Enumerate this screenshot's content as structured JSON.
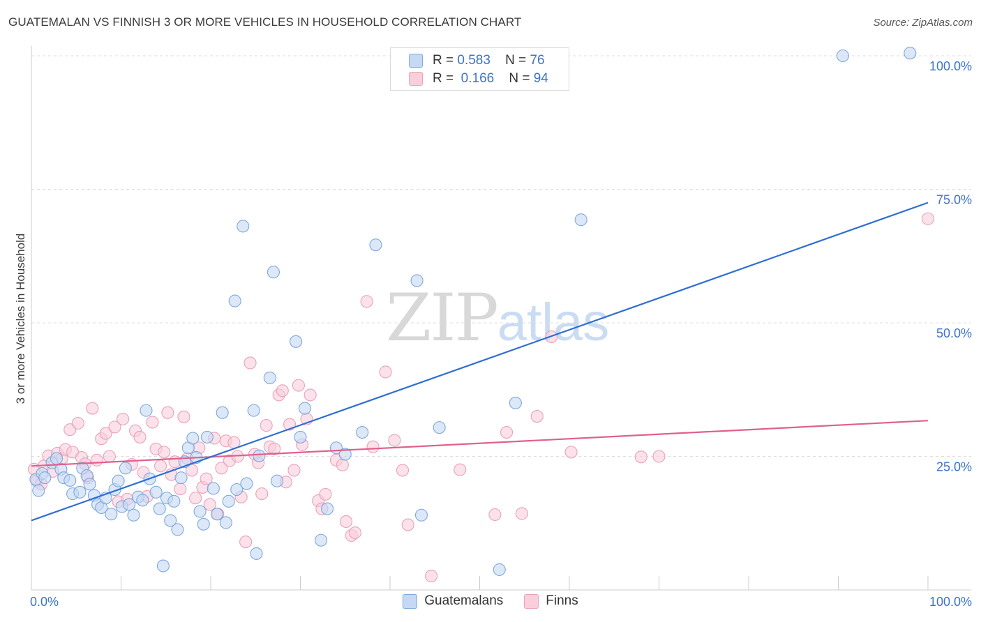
{
  "header": {
    "title": "GUATEMALAN VS FINNISH 3 OR MORE VEHICLES IN HOUSEHOLD CORRELATION CHART",
    "source": "Source: ZipAtlas.com"
  },
  "watermark": {
    "zip": "ZIP",
    "atlas": "atlas"
  },
  "stats": {
    "guatemalans": {
      "r_label": "R =",
      "r_value": "0.583",
      "n_label": "N =",
      "n_value": "76"
    },
    "finns": {
      "r_label": "R =",
      "r_value": "0.166",
      "n_label": "N =",
      "n_value": "94"
    }
  },
  "legend": {
    "guatemalans": "Guatemalans",
    "finns": "Finns"
  },
  "colors": {
    "blue_fill": "#c5d9f4",
    "blue_stroke": "#7ea7dd",
    "blue_line": "#2f6fd1",
    "pink_fill": "#f9cfdc",
    "pink_stroke": "#eba0b8",
    "pink_line": "#e0608e",
    "tick_label": "#3b73c9",
    "grid": "#dddddd"
  },
  "chart_data": {
    "type": "scatter",
    "title": "GUATEMALAN VS FINNISH 3 OR MORE VEHICLES IN HOUSEHOLD CORRELATION CHART",
    "xlabel": "",
    "ylabel": "3 or more Vehicles in Household",
    "xlim": [
      0,
      100
    ],
    "ylim": [
      0,
      100
    ],
    "x_tick_labels": [
      "0.0%",
      "100.0%"
    ],
    "y_ticks": [
      25,
      50,
      75,
      100
    ],
    "y_tick_labels": [
      "25.0%",
      "50.0%",
      "75.0%",
      "100.0%"
    ],
    "grid": true,
    "series": [
      {
        "name": "Guatemalans",
        "r": 0.583,
        "n": 76,
        "trend": {
          "x": [
            0,
            100
          ],
          "y": [
            13.0,
            72.5
          ]
        },
        "points": [
          [
            0.5,
            20.7
          ],
          [
            0.8,
            18.6
          ],
          [
            1.2,
            21.8
          ],
          [
            1.5,
            21.0
          ],
          [
            2.3,
            23.8
          ],
          [
            2.8,
            24.6
          ],
          [
            3.3,
            22.6
          ],
          [
            3.6,
            21.0
          ],
          [
            4.3,
            20.5
          ],
          [
            4.6,
            18.0
          ],
          [
            5.4,
            18.3
          ],
          [
            5.7,
            22.8
          ],
          [
            6.2,
            21.4
          ],
          [
            6.5,
            19.8
          ],
          [
            7.0,
            17.7
          ],
          [
            7.4,
            16.0
          ],
          [
            7.8,
            15.4
          ],
          [
            8.3,
            17.2
          ],
          [
            8.9,
            14.2
          ],
          [
            9.3,
            18.8
          ],
          [
            9.7,
            20.4
          ],
          [
            10.1,
            15.6
          ],
          [
            10.5,
            22.8
          ],
          [
            10.9,
            16.0
          ],
          [
            11.4,
            14.0
          ],
          [
            11.9,
            17.4
          ],
          [
            12.4,
            16.8
          ],
          [
            12.8,
            33.6
          ],
          [
            13.2,
            20.8
          ],
          [
            13.9,
            18.3
          ],
          [
            14.3,
            15.2
          ],
          [
            14.7,
            4.5
          ],
          [
            15.1,
            17.2
          ],
          [
            15.5,
            13.0
          ],
          [
            15.9,
            16.6
          ],
          [
            16.3,
            11.3
          ],
          [
            16.7,
            21.0
          ],
          [
            17.1,
            24.0
          ],
          [
            17.5,
            26.6
          ],
          [
            18.0,
            28.4
          ],
          [
            18.4,
            24.8
          ],
          [
            18.8,
            14.7
          ],
          [
            19.2,
            12.3
          ],
          [
            19.6,
            28.6
          ],
          [
            20.3,
            19.0
          ],
          [
            20.7,
            14.2
          ],
          [
            21.3,
            33.2
          ],
          [
            21.7,
            12.6
          ],
          [
            22.0,
            16.6
          ],
          [
            22.7,
            54.1
          ],
          [
            22.9,
            18.8
          ],
          [
            23.6,
            68.1
          ],
          [
            24.0,
            19.9
          ],
          [
            24.8,
            33.6
          ],
          [
            25.1,
            6.8
          ],
          [
            25.4,
            25.1
          ],
          [
            26.6,
            39.7
          ],
          [
            27.0,
            59.5
          ],
          [
            27.4,
            20.4
          ],
          [
            29.5,
            46.5
          ],
          [
            30.0,
            28.6
          ],
          [
            30.5,
            34.0
          ],
          [
            32.3,
            9.3
          ],
          [
            33.0,
            15.2
          ],
          [
            34.0,
            26.6
          ],
          [
            35.0,
            25.4
          ],
          [
            36.9,
            29.5
          ],
          [
            38.4,
            64.6
          ],
          [
            43.0,
            57.9
          ],
          [
            43.5,
            14.0
          ],
          [
            45.5,
            30.4
          ],
          [
            52.2,
            3.8
          ],
          [
            54.0,
            35.0
          ],
          [
            61.3,
            69.3
          ],
          [
            90.5,
            100.0
          ],
          [
            98.0,
            100.5
          ]
        ]
      },
      {
        "name": "Finns",
        "r": 0.166,
        "n": 94,
        "trend": {
          "x": [
            0,
            100
          ],
          "y": [
            23.2,
            31.7
          ]
        },
        "points": [
          [
            0.3,
            22.6
          ],
          [
            0.6,
            20.4
          ],
          [
            1.1,
            19.8
          ],
          [
            1.4,
            23.2
          ],
          [
            1.9,
            25.1
          ],
          [
            2.4,
            22.2
          ],
          [
            2.9,
            25.6
          ],
          [
            3.4,
            24.6
          ],
          [
            3.8,
            26.3
          ],
          [
            4.3,
            30.0
          ],
          [
            4.6,
            25.8
          ],
          [
            5.2,
            31.2
          ],
          [
            5.6,
            24.8
          ],
          [
            6.0,
            23.6
          ],
          [
            6.3,
            21.0
          ],
          [
            6.8,
            34.0
          ],
          [
            7.3,
            24.3
          ],
          [
            7.8,
            28.3
          ],
          [
            8.3,
            29.3
          ],
          [
            8.7,
            25.0
          ],
          [
            9.3,
            30.5
          ],
          [
            9.7,
            16.5
          ],
          [
            10.2,
            32.0
          ],
          [
            10.7,
            17.0
          ],
          [
            11.2,
            23.5
          ],
          [
            11.6,
            29.8
          ],
          [
            12.1,
            28.6
          ],
          [
            12.5,
            22.0
          ],
          [
            12.9,
            17.5
          ],
          [
            13.5,
            31.4
          ],
          [
            13.9,
            26.4
          ],
          [
            14.4,
            23.2
          ],
          [
            14.8,
            25.8
          ],
          [
            15.2,
            33.2
          ],
          [
            15.6,
            21.6
          ],
          [
            16.0,
            24.0
          ],
          [
            16.6,
            18.9
          ],
          [
            17.0,
            32.4
          ],
          [
            17.4,
            24.6
          ],
          [
            17.9,
            22.4
          ],
          [
            18.3,
            17.2
          ],
          [
            18.7,
            26.6
          ],
          [
            19.1,
            19.2
          ],
          [
            19.5,
            20.8
          ],
          [
            19.9,
            16.0
          ],
          [
            20.4,
            28.4
          ],
          [
            20.8,
            14.2
          ],
          [
            21.2,
            22.8
          ],
          [
            21.7,
            27.9
          ],
          [
            22.1,
            24.2
          ],
          [
            22.6,
            27.6
          ],
          [
            23.0,
            25.0
          ],
          [
            23.4,
            17.4
          ],
          [
            23.9,
            9.0
          ],
          [
            24.4,
            42.5
          ],
          [
            24.9,
            25.4
          ],
          [
            25.3,
            23.8
          ],
          [
            25.7,
            18.0
          ],
          [
            26.2,
            30.8
          ],
          [
            26.6,
            26.8
          ],
          [
            27.1,
            26.4
          ],
          [
            27.6,
            36.5
          ],
          [
            28.0,
            37.3
          ],
          [
            28.4,
            20.2
          ],
          [
            28.8,
            31.0
          ],
          [
            29.3,
            22.4
          ],
          [
            29.8,
            38.3
          ],
          [
            30.2,
            27.2
          ],
          [
            30.7,
            32.0
          ],
          [
            31.1,
            36.5
          ],
          [
            32.0,
            16.7
          ],
          [
            32.4,
            15.2
          ],
          [
            32.8,
            17.9
          ],
          [
            34.0,
            24.3
          ],
          [
            34.7,
            23.4
          ],
          [
            35.1,
            12.8
          ],
          [
            35.7,
            10.2
          ],
          [
            36.1,
            10.7
          ],
          [
            37.4,
            54.0
          ],
          [
            38.1,
            26.8
          ],
          [
            39.5,
            40.8
          ],
          [
            40.5,
            28.0
          ],
          [
            41.4,
            22.4
          ],
          [
            42.0,
            12.2
          ],
          [
            44.6,
            2.6
          ],
          [
            47.8,
            22.5
          ],
          [
            51.7,
            14.1
          ],
          [
            53.0,
            29.5
          ],
          [
            54.7,
            14.3
          ],
          [
            56.4,
            32.5
          ],
          [
            58.0,
            47.4
          ],
          [
            60.2,
            25.8
          ],
          [
            68.0,
            24.9
          ],
          [
            70.0,
            25.0
          ],
          [
            100.0,
            69.5
          ]
        ]
      }
    ]
  },
  "axes": {
    "y_title": "3 or more Vehicles in Household"
  }
}
